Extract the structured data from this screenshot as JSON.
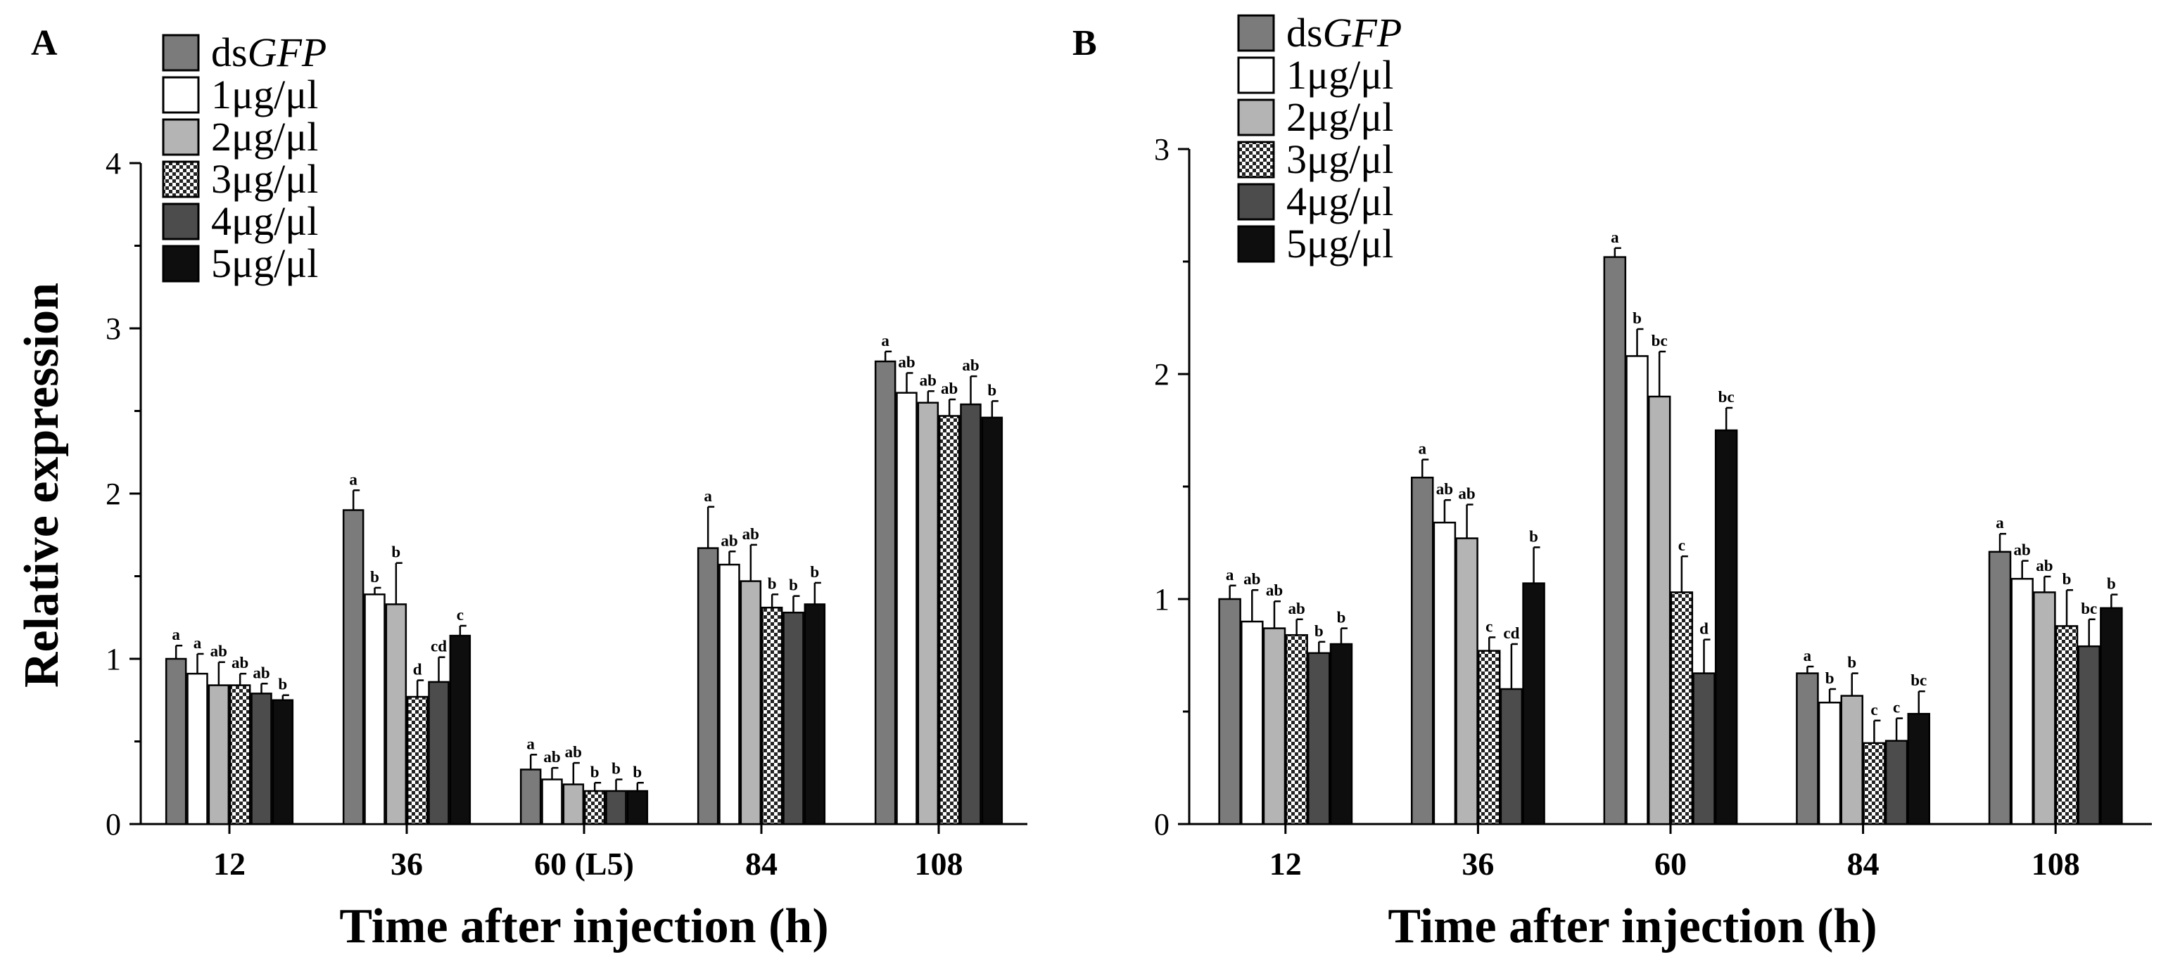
{
  "legend": {
    "items": [
      {
        "prefix": "ds",
        "italic": "GFP",
        "fill": "#7b7b7b",
        "pattern": false
      },
      {
        "prefix": "1μg/μl",
        "italic": "",
        "fill": "#ffffff",
        "pattern": false
      },
      {
        "prefix": "2μg/μl",
        "italic": "",
        "fill": "#b4b4b4",
        "pattern": false
      },
      {
        "prefix": "3μg/μl",
        "italic": "",
        "fill": "#ffffff",
        "pattern": true
      },
      {
        "prefix": "4μg/μl",
        "italic": "",
        "fill": "#4c4c4c",
        "pattern": false
      },
      {
        "prefix": "5μg/μl",
        "italic": "",
        "fill": "#0e0e0e",
        "pattern": false
      }
    ]
  },
  "chart_data": [
    {
      "panel": "A",
      "type": "bar",
      "title": "",
      "xlabel": "Time after injection (h)",
      "ylabel": "Relative expression",
      "ylim": [
        0,
        4
      ],
      "yticks": [
        0,
        1,
        2,
        3,
        4
      ],
      "categories": [
        "12",
        "36",
        "60 (L5)",
        "84",
        "108"
      ],
      "series": [
        {
          "name": "dsGFP",
          "values": [
            1.0,
            1.9,
            0.33,
            1.67,
            2.8
          ],
          "errors": [
            0.08,
            0.12,
            0.09,
            0.25,
            0.06
          ],
          "labels": [
            "a",
            "a",
            "a",
            "a",
            "a"
          ]
        },
        {
          "name": "1μg/μl",
          "values": [
            0.91,
            1.39,
            0.27,
            1.57,
            2.61
          ],
          "errors": [
            0.12,
            0.04,
            0.07,
            0.08,
            0.12
          ],
          "labels": [
            "a",
            "b",
            "ab",
            "ab",
            "ab"
          ]
        },
        {
          "name": "2μg/μl",
          "values": [
            0.84,
            1.33,
            0.24,
            1.47,
            2.55
          ],
          "errors": [
            0.14,
            0.25,
            0.13,
            0.22,
            0.07
          ],
          "labels": [
            "ab",
            "b",
            "ab",
            "ab",
            "ab"
          ]
        },
        {
          "name": "3μg/μl",
          "values": [
            0.84,
            0.77,
            0.2,
            1.31,
            2.47
          ],
          "errors": [
            0.07,
            0.1,
            0.05,
            0.08,
            0.1
          ],
          "labels": [
            "ab",
            "d",
            "b",
            "b",
            "ab"
          ]
        },
        {
          "name": "4μg/μl",
          "values": [
            0.79,
            0.86,
            0.2,
            1.28,
            2.54
          ],
          "errors": [
            0.06,
            0.15,
            0.07,
            0.1,
            0.17
          ],
          "labels": [
            "ab",
            "cd",
            "b",
            "b",
            "ab"
          ]
        },
        {
          "name": "5μg/μl",
          "values": [
            0.75,
            1.14,
            0.2,
            1.33,
            2.46
          ],
          "errors": [
            0.03,
            0.06,
            0.05,
            0.13,
            0.1
          ],
          "labels": [
            "b",
            "c",
            "b",
            "b",
            "b"
          ]
        }
      ]
    },
    {
      "panel": "B",
      "type": "bar",
      "title": "",
      "xlabel": "Time after injection (h)",
      "ylabel": "",
      "ylim": [
        0,
        3
      ],
      "yticks": [
        0,
        1,
        2,
        3
      ],
      "categories": [
        "12",
        "36",
        "60",
        "84",
        "108"
      ],
      "series": [
        {
          "name": "dsGFP",
          "values": [
            1.0,
            1.54,
            2.52,
            0.67,
            1.21
          ],
          "errors": [
            0.06,
            0.08,
            0.04,
            0.03,
            0.08
          ],
          "labels": [
            "a",
            "a",
            "a",
            "a",
            "a"
          ]
        },
        {
          "name": "1μg/μl",
          "values": [
            0.9,
            1.34,
            2.08,
            0.54,
            1.09
          ],
          "errors": [
            0.14,
            0.1,
            0.12,
            0.06,
            0.08
          ],
          "labels": [
            "ab",
            "ab",
            "b",
            "b",
            "ab"
          ]
        },
        {
          "name": "2μg/μl",
          "values": [
            0.87,
            1.27,
            1.9,
            0.57,
            1.03
          ],
          "errors": [
            0.12,
            0.15,
            0.2,
            0.1,
            0.07
          ],
          "labels": [
            "ab",
            "ab",
            "bc",
            "b",
            "ab"
          ]
        },
        {
          "name": "3μg/μl",
          "values": [
            0.84,
            0.77,
            1.03,
            0.36,
            0.88
          ],
          "errors": [
            0.07,
            0.06,
            0.16,
            0.1,
            0.16
          ],
          "labels": [
            "ab",
            "c",
            "c",
            "c",
            "b"
          ]
        },
        {
          "name": "4μg/μl",
          "values": [
            0.76,
            0.6,
            0.67,
            0.37,
            0.79
          ],
          "errors": [
            0.05,
            0.2,
            0.15,
            0.1,
            0.12
          ],
          "labels": [
            "b",
            "cd",
            "d",
            "c",
            "bc"
          ]
        },
        {
          "name": "5μg/μl",
          "values": [
            0.8,
            1.07,
            1.75,
            0.49,
            0.96
          ],
          "errors": [
            0.07,
            0.16,
            0.1,
            0.1,
            0.06
          ],
          "labels": [
            "b",
            "b",
            "bc",
            "bc",
            "b"
          ]
        }
      ]
    }
  ]
}
